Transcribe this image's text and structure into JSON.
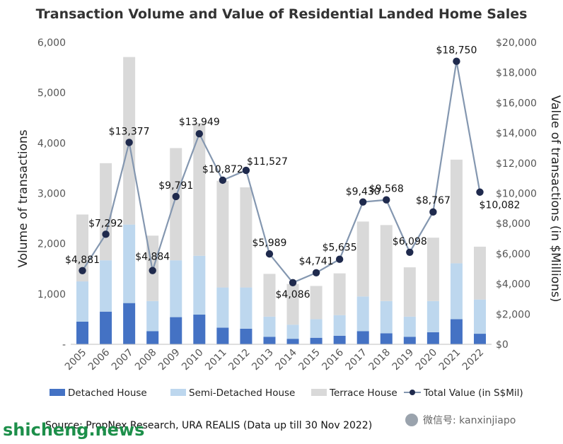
{
  "chart_data": {
    "type": "bar",
    "title": "Transaction Volume and Value of Residential Landed Home Sales",
    "ylabel": "Volume of transactions",
    "y2label": "Value of transactions (in $Millions)",
    "ylim": [
      0,
      6000
    ],
    "y2lim": [
      0,
      20000
    ],
    "yticks": [
      "-",
      "1,000",
      "2,000",
      "3,000",
      "4,000",
      "5,000",
      "6,000"
    ],
    "y2ticks": [
      "$0",
      "$2,000",
      "$4,000",
      "$6,000",
      "$8,000",
      "$10,000",
      "$12,000",
      "$14,000",
      "$16,000",
      "$18,000",
      "$20,000"
    ],
    "categories": [
      "2005",
      "2006",
      "2007",
      "2008",
      "2009",
      "2010",
      "2011",
      "2012",
      "2013",
      "2014",
      "2015",
      "2016",
      "2017",
      "2018",
      "2019",
      "2020",
      "2021",
      "2022"
    ],
    "series": [
      {
        "name": "Detached House",
        "kind": "stacked-bar",
        "color": "#4472c4",
        "values": [
          450,
          650,
          820,
          260,
          540,
          590,
          330,
          310,
          150,
          110,
          130,
          170,
          260,
          220,
          150,
          240,
          500,
          210
        ]
      },
      {
        "name": "Semi-Detached House",
        "kind": "stacked-bar",
        "color": "#bdd7ee",
        "values": [
          800,
          1020,
          1560,
          600,
          1130,
          1170,
          800,
          820,
          400,
          280,
          370,
          410,
          690,
          640,
          400,
          620,
          1110,
          680
        ]
      },
      {
        "name": "Terrace House",
        "kind": "stacked-bar",
        "color": "#d9d9d9",
        "values": [
          1330,
          1930,
          3330,
          1300,
          2230,
          2640,
          2120,
          1990,
          850,
          810,
          660,
          830,
          1490,
          1510,
          980,
          1260,
          2060,
          1050
        ]
      },
      {
        "name": "Total Value (in S$Mil)",
        "kind": "line",
        "axis": "right",
        "color": "#8497b0",
        "values": [
          4881,
          7292,
          13377,
          4884,
          9791,
          13949,
          10872,
          11527,
          5989,
          4086,
          4741,
          5635,
          9430,
          9568,
          6098,
          8767,
          18750,
          10082
        ],
        "labels": [
          "$4,881",
          "$7,292",
          "$13,377",
          "$4,884",
          "$9,791",
          "$13,949",
          "$10,872",
          "$11,527",
          "$5,989",
          "$4,086",
          "$4,741",
          "$5,635",
          "$9,430",
          "$9,568",
          "$6,098",
          "$8,767",
          "$18,750",
          "$10,082"
        ]
      }
    ],
    "legend": "bottom",
    "grid": false,
    "source": "Source: PropNex Research, URA REALIS (Data up till 30 Nov 2022)"
  },
  "watermark": {
    "site": "shicheng.news",
    "wechat": "微信号: kanxinjiapo"
  },
  "colors": {
    "axis": "#bfbfbf",
    "marker": "#1f2a4d"
  }
}
